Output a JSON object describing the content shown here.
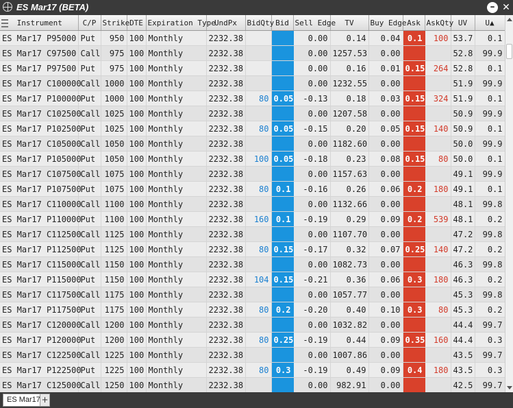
{
  "window": {
    "title": "ES Mar17 (BETA)"
  },
  "columns": {
    "instrument": "Instrument",
    "cp": "C/P",
    "strike": "Strike",
    "dte": "DTE",
    "expiration": "Expiration Type",
    "undpx": "UndPx",
    "bidqty": "BidQty",
    "bid": "Bid",
    "sell_edge": "Sell Edge",
    "tv": "TV",
    "buy_edge": "Buy Edge",
    "ask": "Ask",
    "askqty": "AskQty",
    "uv": "UV",
    "ua": "U▲"
  },
  "rows": [
    {
      "instrument": "ES Mar17 P95000",
      "cp": "Put",
      "strike": "950",
      "dte": "100",
      "expiration": "Monthly",
      "undpx": "2232.38",
      "bidqty": "",
      "bid": "",
      "sell_edge": "0.00",
      "tv": "0.14",
      "buy_edge": "0.04",
      "ask": "0.1",
      "askqty": "100",
      "uv": "53.7",
      "ua": "0.1"
    },
    {
      "instrument": "ES Mar17 C97500",
      "cp": "Call",
      "strike": "975",
      "dte": "100",
      "expiration": "Monthly",
      "undpx": "2232.38",
      "bidqty": "",
      "bid": "",
      "sell_edge": "0.00",
      "tv": "1257.53",
      "buy_edge": "0.00",
      "ask": "",
      "askqty": "",
      "uv": "52.8",
      "ua": "99.9"
    },
    {
      "instrument": "ES Mar17 P97500",
      "cp": "Put",
      "strike": "975",
      "dte": "100",
      "expiration": "Monthly",
      "undpx": "2232.38",
      "bidqty": "",
      "bid": "",
      "sell_edge": "0.00",
      "tv": "0.16",
      "buy_edge": "0.01",
      "ask": "0.15",
      "askqty": "264",
      "uv": "52.8",
      "ua": "0.1"
    },
    {
      "instrument": "ES Mar17 C100000",
      "cp": "Call",
      "strike": "1000",
      "dte": "100",
      "expiration": "Monthly",
      "undpx": "2232.38",
      "bidqty": "",
      "bid": "",
      "sell_edge": "0.00",
      "tv": "1232.55",
      "buy_edge": "0.00",
      "ask": "",
      "askqty": "",
      "uv": "51.9",
      "ua": "99.9"
    },
    {
      "instrument": "ES Mar17 P100000",
      "cp": "Put",
      "strike": "1000",
      "dte": "100",
      "expiration": "Monthly",
      "undpx": "2232.38",
      "bidqty": "80",
      "bid": "0.05",
      "sell_edge": "-0.13",
      "tv": "0.18",
      "buy_edge": "0.03",
      "ask": "0.15",
      "askqty": "324",
      "uv": "51.9",
      "ua": "0.1"
    },
    {
      "instrument": "ES Mar17 C102500",
      "cp": "Call",
      "strike": "1025",
      "dte": "100",
      "expiration": "Monthly",
      "undpx": "2232.38",
      "bidqty": "",
      "bid": "",
      "sell_edge": "0.00",
      "tv": "1207.58",
      "buy_edge": "0.00",
      "ask": "",
      "askqty": "",
      "uv": "50.9",
      "ua": "99.9"
    },
    {
      "instrument": "ES Mar17 P102500",
      "cp": "Put",
      "strike": "1025",
      "dte": "100",
      "expiration": "Monthly",
      "undpx": "2232.38",
      "bidqty": "80",
      "bid": "0.05",
      "sell_edge": "-0.15",
      "tv": "0.20",
      "buy_edge": "0.05",
      "ask": "0.15",
      "askqty": "140",
      "uv": "50.9",
      "ua": "0.1"
    },
    {
      "instrument": "ES Mar17 C105000",
      "cp": "Call",
      "strike": "1050",
      "dte": "100",
      "expiration": "Monthly",
      "undpx": "2232.38",
      "bidqty": "",
      "bid": "",
      "sell_edge": "0.00",
      "tv": "1182.60",
      "buy_edge": "0.00",
      "ask": "",
      "askqty": "",
      "uv": "50.0",
      "ua": "99.9"
    },
    {
      "instrument": "ES Mar17 P105000",
      "cp": "Put",
      "strike": "1050",
      "dte": "100",
      "expiration": "Monthly",
      "undpx": "2232.38",
      "bidqty": "100",
      "bid": "0.05",
      "sell_edge": "-0.18",
      "tv": "0.23",
      "buy_edge": "0.08",
      "ask": "0.15",
      "askqty": "80",
      "uv": "50.0",
      "ua": "0.1"
    },
    {
      "instrument": "ES Mar17 C107500",
      "cp": "Call",
      "strike": "1075",
      "dte": "100",
      "expiration": "Monthly",
      "undpx": "2232.38",
      "bidqty": "",
      "bid": "",
      "sell_edge": "0.00",
      "tv": "1157.63",
      "buy_edge": "0.00",
      "ask": "",
      "askqty": "",
      "uv": "49.1",
      "ua": "99.9"
    },
    {
      "instrument": "ES Mar17 P107500",
      "cp": "Put",
      "strike": "1075",
      "dte": "100",
      "expiration": "Monthly",
      "undpx": "2232.38",
      "bidqty": "80",
      "bid": "0.1",
      "sell_edge": "-0.16",
      "tv": "0.26",
      "buy_edge": "0.06",
      "ask": "0.2",
      "askqty": "180",
      "uv": "49.1",
      "ua": "0.1"
    },
    {
      "instrument": "ES Mar17 C110000",
      "cp": "Call",
      "strike": "1100",
      "dte": "100",
      "expiration": "Monthly",
      "undpx": "2232.38",
      "bidqty": "",
      "bid": "",
      "sell_edge": "0.00",
      "tv": "1132.66",
      "buy_edge": "0.00",
      "ask": "",
      "askqty": "",
      "uv": "48.1",
      "ua": "99.8"
    },
    {
      "instrument": "ES Mar17 P110000",
      "cp": "Put",
      "strike": "1100",
      "dte": "100",
      "expiration": "Monthly",
      "undpx": "2232.38",
      "bidqty": "160",
      "bid": "0.1",
      "sell_edge": "-0.19",
      "tv": "0.29",
      "buy_edge": "0.09",
      "ask": "0.2",
      "askqty": "539",
      "uv": "48.1",
      "ua": "0.2"
    },
    {
      "instrument": "ES Mar17 C112500",
      "cp": "Call",
      "strike": "1125",
      "dte": "100",
      "expiration": "Monthly",
      "undpx": "2232.38",
      "bidqty": "",
      "bid": "",
      "sell_edge": "0.00",
      "tv": "1107.70",
      "buy_edge": "0.00",
      "ask": "",
      "askqty": "",
      "uv": "47.2",
      "ua": "99.8"
    },
    {
      "instrument": "ES Mar17 P112500",
      "cp": "Put",
      "strike": "1125",
      "dte": "100",
      "expiration": "Monthly",
      "undpx": "2232.38",
      "bidqty": "80",
      "bid": "0.15",
      "sell_edge": "-0.17",
      "tv": "0.32",
      "buy_edge": "0.07",
      "ask": "0.25",
      "askqty": "140",
      "uv": "47.2",
      "ua": "0.2"
    },
    {
      "instrument": "ES Mar17 C115000",
      "cp": "Call",
      "strike": "1150",
      "dte": "100",
      "expiration": "Monthly",
      "undpx": "2232.38",
      "bidqty": "",
      "bid": "",
      "sell_edge": "0.00",
      "tv": "1082.73",
      "buy_edge": "0.00",
      "ask": "",
      "askqty": "",
      "uv": "46.3",
      "ua": "99.8"
    },
    {
      "instrument": "ES Mar17 P115000",
      "cp": "Put",
      "strike": "1150",
      "dte": "100",
      "expiration": "Monthly",
      "undpx": "2232.38",
      "bidqty": "104",
      "bid": "0.15",
      "sell_edge": "-0.21",
      "tv": "0.36",
      "buy_edge": "0.06",
      "ask": "0.3",
      "askqty": "180",
      "uv": "46.3",
      "ua": "0.2"
    },
    {
      "instrument": "ES Mar17 C117500",
      "cp": "Call",
      "strike": "1175",
      "dte": "100",
      "expiration": "Monthly",
      "undpx": "2232.38",
      "bidqty": "",
      "bid": "",
      "sell_edge": "0.00",
      "tv": "1057.77",
      "buy_edge": "0.00",
      "ask": "",
      "askqty": "",
      "uv": "45.3",
      "ua": "99.8"
    },
    {
      "instrument": "ES Mar17 P117500",
      "cp": "Put",
      "strike": "1175",
      "dte": "100",
      "expiration": "Monthly",
      "undpx": "2232.38",
      "bidqty": "80",
      "bid": "0.2",
      "sell_edge": "-0.20",
      "tv": "0.40",
      "buy_edge": "0.10",
      "ask": "0.3",
      "askqty": "80",
      "uv": "45.3",
      "ua": "0.2"
    },
    {
      "instrument": "ES Mar17 C120000",
      "cp": "Call",
      "strike": "1200",
      "dte": "100",
      "expiration": "Monthly",
      "undpx": "2232.38",
      "bidqty": "",
      "bid": "",
      "sell_edge": "0.00",
      "tv": "1032.82",
      "buy_edge": "0.00",
      "ask": "",
      "askqty": "",
      "uv": "44.4",
      "ua": "99.7"
    },
    {
      "instrument": "ES Mar17 P120000",
      "cp": "Put",
      "strike": "1200",
      "dte": "100",
      "expiration": "Monthly",
      "undpx": "2232.38",
      "bidqty": "80",
      "bid": "0.25",
      "sell_edge": "-0.19",
      "tv": "0.44",
      "buy_edge": "0.09",
      "ask": "0.35",
      "askqty": "160",
      "uv": "44.4",
      "ua": "0.3"
    },
    {
      "instrument": "ES Mar17 C122500",
      "cp": "Call",
      "strike": "1225",
      "dte": "100",
      "expiration": "Monthly",
      "undpx": "2232.38",
      "bidqty": "",
      "bid": "",
      "sell_edge": "0.00",
      "tv": "1007.86",
      "buy_edge": "0.00",
      "ask": "",
      "askqty": "",
      "uv": "43.5",
      "ua": "99.7"
    },
    {
      "instrument": "ES Mar17 P122500",
      "cp": "Put",
      "strike": "1225",
      "dte": "100",
      "expiration": "Monthly",
      "undpx": "2232.38",
      "bidqty": "80",
      "bid": "0.3",
      "sell_edge": "-0.19",
      "tv": "0.49",
      "buy_edge": "0.09",
      "ask": "0.4",
      "askqty": "180",
      "uv": "43.5",
      "ua": "0.3"
    },
    {
      "instrument": "ES Mar17 C125000",
      "cp": "Call",
      "strike": "1250",
      "dte": "100",
      "expiration": "Monthly",
      "undpx": "2232.38",
      "bidqty": "",
      "bid": "",
      "sell_edge": "0.00",
      "tv": "982.91",
      "buy_edge": "0.00",
      "ask": "",
      "askqty": "",
      "uv": "42.5",
      "ua": "99.7"
    }
  ],
  "tabs": [
    {
      "label": "ES Mar17"
    }
  ],
  "colors": {
    "bid": "#1a94de",
    "ask": "#d9412b",
    "bidqty_text": "#1a7fd0",
    "askqty_text": "#d23a2a"
  }
}
